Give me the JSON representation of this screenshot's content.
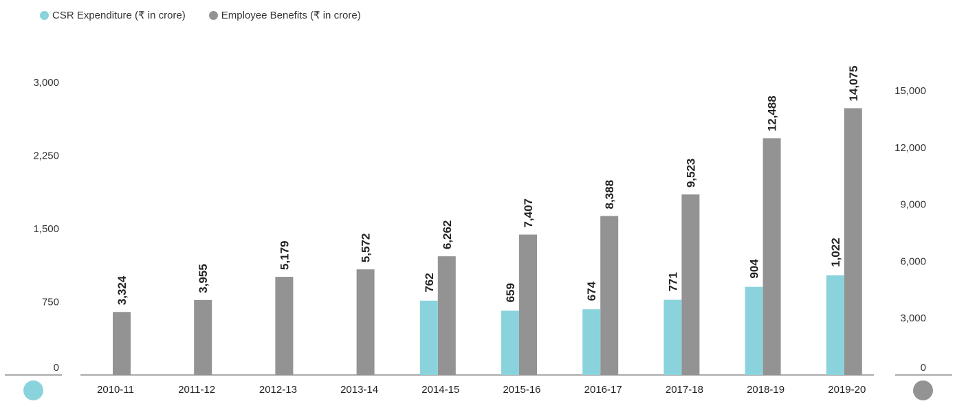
{
  "legend": [
    {
      "label": "CSR Expenditure (₹ in crore)",
      "color": "#8bd3dc"
    },
    {
      "label": "Employee Benefits (₹ in crore)",
      "color": "#939393"
    }
  ],
  "chart_data": {
    "type": "bar",
    "categories": [
      "2010-11",
      "2011-12",
      "2012-13",
      "2013-14",
      "2014-15",
      "2015-16",
      "2016-17",
      "2017-18",
      "2018-19",
      "2019-20"
    ],
    "series": [
      {
        "name": "CSR Expenditure (₹ in crore)",
        "axis": "left",
        "color": "#8bd3dc",
        "values": [
          null,
          null,
          null,
          null,
          762,
          659,
          674,
          771,
          904,
          1022
        ],
        "labels": [
          "",
          "",
          "",
          "",
          "762",
          "659",
          "674",
          "771",
          "904",
          "1,022"
        ]
      },
      {
        "name": "Employee Benefits (₹ in crore)",
        "axis": "right",
        "color": "#939393",
        "values": [
          3324,
          3955,
          5179,
          5572,
          6262,
          7407,
          8388,
          9523,
          12488,
          14075
        ],
        "labels": [
          "3,324",
          "3,955",
          "5,179",
          "5,572",
          "6,262",
          "7,407",
          "8,388",
          "9,523",
          "12,488",
          "14,075"
        ]
      }
    ],
    "y_left": {
      "ticks": [
        0,
        750,
        1500,
        2250,
        3000
      ],
      "tick_labels": [
        "0",
        "750",
        "1,500",
        "2,250",
        "3,000"
      ],
      "ylim": [
        0,
        3000
      ]
    },
    "y_right": {
      "ticks": [
        0,
        3000,
        6000,
        9000,
        12000,
        15000
      ],
      "tick_labels": [
        "0",
        "3,000",
        "6,000",
        "9,000",
        "12,000",
        "15,000"
      ],
      "ylim": [
        0,
        15000
      ]
    },
    "grid": false,
    "legend_position": "top-left"
  }
}
